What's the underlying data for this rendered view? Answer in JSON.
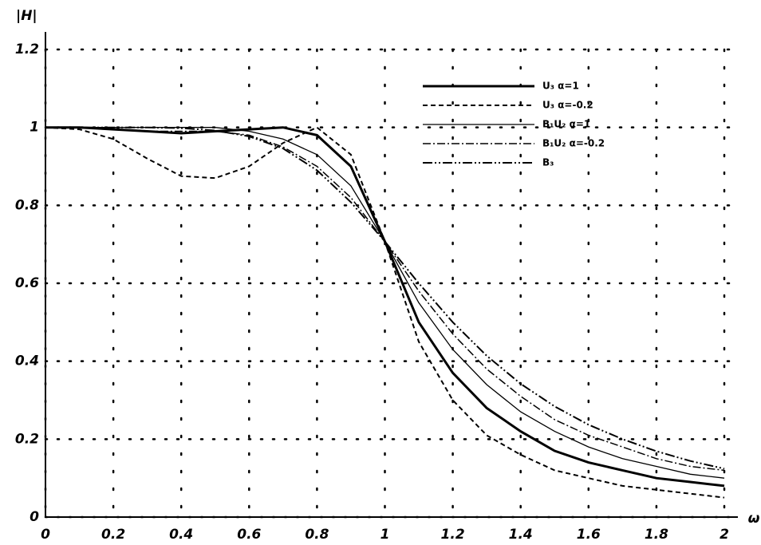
{
  "chart_data": {
    "type": "line",
    "y_label": "|H|",
    "x_label": "ω",
    "x": [
      0,
      0.1,
      0.2,
      0.3,
      0.4,
      0.5,
      0.6,
      0.7,
      0.8,
      0.9,
      1,
      1.1,
      1.2,
      1.3,
      1.4,
      1.5,
      1.6,
      1.7,
      1.8,
      1.9,
      2
    ],
    "series": [
      {
        "name": "U₃ α=1",
        "color": "#000000",
        "dash": "none",
        "width": 3,
        "values": [
          1,
          1,
          0.995,
          0.99,
          0.985,
          0.99,
          0.995,
          1,
          0.98,
          0.9,
          0.707,
          0.5,
          0.37,
          0.28,
          0.22,
          0.17,
          0.14,
          0.12,
          0.1,
          0.09,
          0.08
        ]
      },
      {
        "name": "U₃ α=-0.2",
        "color": "#000000",
        "dash": "6 4",
        "width": 2,
        "values": [
          1,
          0.995,
          0.97,
          0.92,
          0.875,
          0.87,
          0.9,
          0.96,
          1,
          0.93,
          0.707,
          0.45,
          0.3,
          0.21,
          0.16,
          0.12,
          0.1,
          0.08,
          0.07,
          0.06,
          0.05
        ]
      },
      {
        "name": "B₁U₂ α=1",
        "color": "#000000",
        "dash": "none",
        "width": 1.3,
        "values": [
          1,
          1,
          1,
          1,
          1,
          1,
          0.99,
          0.97,
          0.93,
          0.85,
          0.707,
          0.55,
          0.43,
          0.34,
          0.27,
          0.22,
          0.18,
          0.15,
          0.13,
          0.11,
          0.1
        ]
      },
      {
        "name": "B₁U₂ α=-0.2",
        "color": "#000000",
        "dash": "10 3 2 3",
        "width": 1.5,
        "values": [
          1,
          1,
          0.995,
          0.99,
          0.99,
          0.99,
          0.98,
          0.95,
          0.9,
          0.82,
          0.707,
          0.58,
          0.47,
          0.38,
          0.31,
          0.25,
          0.21,
          0.18,
          0.15,
          0.13,
          0.12
        ]
      },
      {
        "name": "B₃",
        "color": "#000000",
        "dash": "12 3 2 3 2 3",
        "width": 2,
        "values": [
          1,
          1,
          1,
          1,
          0.998,
          0.992,
          0.977,
          0.946,
          0.89,
          0.808,
          0.707,
          0.6,
          0.5,
          0.414,
          0.342,
          0.284,
          0.237,
          0.2,
          0.169,
          0.144,
          0.124
        ]
      }
    ],
    "xlim": [
      0,
      2
    ],
    "ylim": [
      0,
      1.2
    ],
    "xticks": [
      0,
      0.2,
      0.4,
      0.6,
      0.8,
      1,
      1.2,
      1.4,
      1.6,
      1.8,
      2
    ],
    "yticks": [
      0,
      0.2,
      0.4,
      0.6,
      0.8,
      1,
      1.2
    ],
    "grid": true,
    "legend": "upper right"
  }
}
